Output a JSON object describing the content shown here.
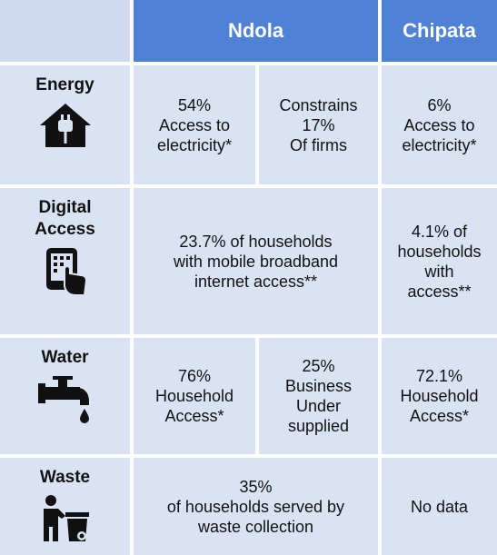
{
  "header": {
    "columns": [
      "Ndola",
      "Chipata"
    ]
  },
  "rows": [
    {
      "label": [
        "Energy"
      ],
      "cells": [
        [
          "54%",
          "Access to",
          "electricity*"
        ],
        [
          "Constrains",
          "17%",
          "Of firms"
        ],
        [
          "6%",
          "Access to",
          "electricity*"
        ]
      ]
    },
    {
      "label": [
        "Digital",
        "Access"
      ],
      "cells": [
        [
          "23.7% of households",
          "with mobile broadband",
          "internet access**"
        ],
        [
          "4.1% of",
          "households",
          "with",
          "access**"
        ]
      ]
    },
    {
      "label": [
        "Water"
      ],
      "cells": [
        [
          "76%",
          "Household",
          "Access*"
        ],
        [
          "25%",
          "Business",
          "Under",
          "supplied"
        ],
        [
          "72.1%",
          "Household",
          "Access*"
        ]
      ]
    },
    {
      "label": [
        "Waste"
      ],
      "cells": [
        [
          "35%",
          "of households served by",
          "waste collection"
        ],
        [
          "No data"
        ]
      ]
    }
  ]
}
